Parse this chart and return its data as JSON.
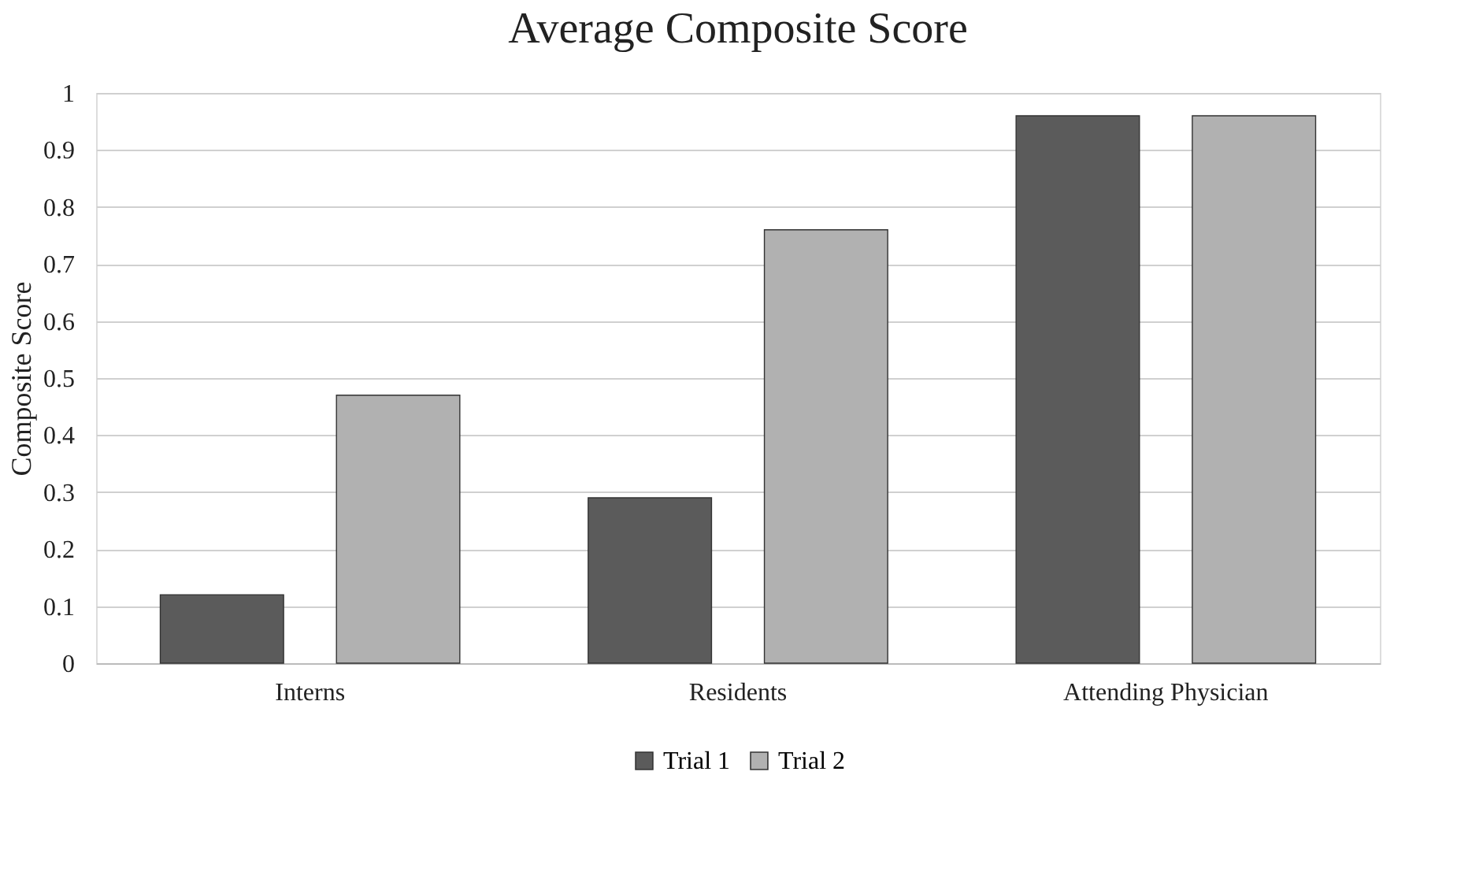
{
  "chart_data": {
    "type": "bar",
    "title": "Average Composite Score",
    "ylabel": "Composite Score",
    "categories": [
      "Interns",
      "Residents",
      "Attending Physician"
    ],
    "series": [
      {
        "name": "Trial 1",
        "color": "#5b5b5b",
        "values": [
          0.12,
          0.29,
          0.96
        ]
      },
      {
        "name": "Trial 2",
        "color": "#b1b1b1",
        "values": [
          0.47,
          0.76,
          0.96
        ]
      }
    ],
    "ylim": [
      0,
      1
    ],
    "yticks": [
      0,
      0.1,
      0.2,
      0.3,
      0.4,
      0.5,
      0.6,
      0.7,
      0.8,
      0.9,
      1
    ],
    "grid": "y",
    "legend": "bottom"
  }
}
